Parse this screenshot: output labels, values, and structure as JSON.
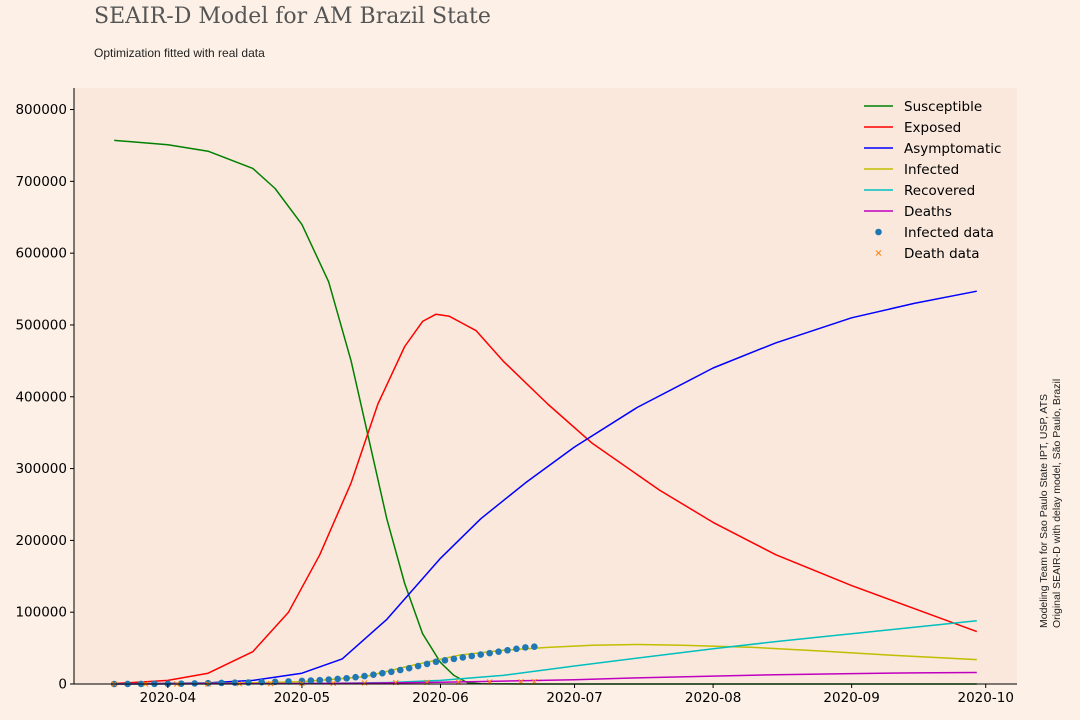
{
  "header": {
    "title": "SEAIR-D Model for AM Brazil State",
    "subtitle": "Optimization fitted with real data"
  },
  "credits": {
    "line1": "Modeling Team for Sao Paulo State IPT, USP, ATS",
    "line2": "Original SEAIR-D with delay model, São Paulo, Brazil"
  },
  "colors": {
    "figure_bg": "#fdf1e7",
    "axes_bg": "#fae8dc"
  },
  "chart_data": {
    "type": "line",
    "title": "SEAIR-D Model for AM Brazil State",
    "subtitle": "Optimization fitted with real data",
    "xlabel": "",
    "ylabel": "",
    "x_start": "2020-03-20",
    "x_end": "2020-09-29",
    "xlim": [
      "2020-03-11",
      "2020-10-08"
    ],
    "ylim": [
      0,
      830000
    ],
    "x_ticks": [
      "2020-04",
      "2020-05",
      "2020-06",
      "2020-07",
      "2020-08",
      "2020-09",
      "2020-10"
    ],
    "y_ticks": [
      0,
      100000,
      200000,
      300000,
      400000,
      500000,
      600000,
      700000,
      800000
    ],
    "grid": false,
    "legend_position": "top-right",
    "series": [
      {
        "name": "Susceptible",
        "color": "#008000",
        "style": "line",
        "points": [
          [
            "2020-03-20",
            757000
          ],
          [
            "2020-04-01",
            751000
          ],
          [
            "2020-04-10",
            742000
          ],
          [
            "2020-04-20",
            718000
          ],
          [
            "2020-04-25",
            690000
          ],
          [
            "2020-05-01",
            640000
          ],
          [
            "2020-05-07",
            560000
          ],
          [
            "2020-05-12",
            450000
          ],
          [
            "2020-05-16",
            340000
          ],
          [
            "2020-05-20",
            230000
          ],
          [
            "2020-05-24",
            140000
          ],
          [
            "2020-05-28",
            70000
          ],
          [
            "2020-06-01",
            30000
          ],
          [
            "2020-06-04",
            12000
          ],
          [
            "2020-06-07",
            2000
          ],
          [
            "2020-06-10",
            300
          ],
          [
            "2020-06-20",
            0
          ],
          [
            "2020-09-29",
            0
          ]
        ]
      },
      {
        "name": "Exposed",
        "color": "#ff0000",
        "style": "line",
        "points": [
          [
            "2020-03-20",
            500
          ],
          [
            "2020-04-01",
            5000
          ],
          [
            "2020-04-10",
            15000
          ],
          [
            "2020-04-20",
            45000
          ],
          [
            "2020-04-28",
            100000
          ],
          [
            "2020-05-05",
            180000
          ],
          [
            "2020-05-12",
            280000
          ],
          [
            "2020-05-18",
            390000
          ],
          [
            "2020-05-24",
            470000
          ],
          [
            "2020-05-28",
            505000
          ],
          [
            "2020-05-31",
            515000
          ],
          [
            "2020-06-03",
            512000
          ],
          [
            "2020-06-06",
            502000
          ],
          [
            "2020-06-09",
            492000
          ],
          [
            "2020-06-15",
            450000
          ],
          [
            "2020-06-25",
            390000
          ],
          [
            "2020-07-05",
            335000
          ],
          [
            "2020-07-20",
            270000
          ],
          [
            "2020-08-01",
            225000
          ],
          [
            "2020-08-15",
            180000
          ],
          [
            "2020-09-01",
            137000
          ],
          [
            "2020-09-15",
            105000
          ],
          [
            "2020-09-29",
            73000
          ]
        ]
      },
      {
        "name": "Asymptomatic",
        "color": "#0000ff",
        "style": "line",
        "points": [
          [
            "2020-03-20",
            0
          ],
          [
            "2020-04-10",
            1500
          ],
          [
            "2020-04-20",
            5000
          ],
          [
            "2020-05-01",
            15000
          ],
          [
            "2020-05-10",
            35000
          ],
          [
            "2020-05-20",
            90000
          ],
          [
            "2020-06-01",
            175000
          ],
          [
            "2020-06-10",
            230000
          ],
          [
            "2020-06-20",
            280000
          ],
          [
            "2020-07-01",
            330000
          ],
          [
            "2020-07-15",
            385000
          ],
          [
            "2020-08-01",
            440000
          ],
          [
            "2020-08-15",
            475000
          ],
          [
            "2020-09-01",
            510000
          ],
          [
            "2020-09-15",
            530000
          ],
          [
            "2020-09-29",
            547000
          ]
        ]
      },
      {
        "name": "Infected",
        "color": "#bfbf00",
        "style": "line",
        "points": [
          [
            "2020-03-20",
            0
          ],
          [
            "2020-04-15",
            1000
          ],
          [
            "2020-05-01",
            3000
          ],
          [
            "2020-05-15",
            10000
          ],
          [
            "2020-05-25",
            25000
          ],
          [
            "2020-06-05",
            40000
          ],
          [
            "2020-06-15",
            47000
          ],
          [
            "2020-06-25",
            51000
          ],
          [
            "2020-07-05",
            54000
          ],
          [
            "2020-07-15",
            55000
          ],
          [
            "2020-07-25",
            54000
          ],
          [
            "2020-08-10",
            51000
          ],
          [
            "2020-08-25",
            46000
          ],
          [
            "2020-09-10",
            40000
          ],
          [
            "2020-09-29",
            34000
          ]
        ]
      },
      {
        "name": "Recovered",
        "color": "#00bfbf",
        "style": "line",
        "points": [
          [
            "2020-03-20",
            0
          ],
          [
            "2020-05-01",
            500
          ],
          [
            "2020-05-20",
            2000
          ],
          [
            "2020-06-01",
            5000
          ],
          [
            "2020-06-15",
            12000
          ],
          [
            "2020-07-01",
            25000
          ],
          [
            "2020-07-15",
            36000
          ],
          [
            "2020-08-01",
            49000
          ],
          [
            "2020-08-15",
            59000
          ],
          [
            "2020-09-01",
            70000
          ],
          [
            "2020-09-15",
            79000
          ],
          [
            "2020-09-29",
            88000
          ]
        ]
      },
      {
        "name": "Deaths",
        "color": "#bf00bf",
        "style": "line",
        "points": [
          [
            "2020-03-20",
            0
          ],
          [
            "2020-05-15",
            1000
          ],
          [
            "2020-06-01",
            2500
          ],
          [
            "2020-06-15",
            4000
          ],
          [
            "2020-07-01",
            6000
          ],
          [
            "2020-07-15",
            8500
          ],
          [
            "2020-08-01",
            11000
          ],
          [
            "2020-08-15",
            13000
          ],
          [
            "2020-09-01",
            14500
          ],
          [
            "2020-09-15",
            15500
          ],
          [
            "2020-09-29",
            16000
          ]
        ]
      },
      {
        "name": "Infected data",
        "color": "#1f77b4",
        "style": "dots",
        "points": [
          [
            "2020-03-20",
            0
          ],
          [
            "2020-03-23",
            30
          ],
          [
            "2020-03-26",
            100
          ],
          [
            "2020-03-29",
            200
          ],
          [
            "2020-04-01",
            300
          ],
          [
            "2020-04-04",
            500
          ],
          [
            "2020-04-07",
            800
          ],
          [
            "2020-04-10",
            1200
          ],
          [
            "2020-04-13",
            1500
          ],
          [
            "2020-04-16",
            1800
          ],
          [
            "2020-04-19",
            2100
          ],
          [
            "2020-04-22",
            2500
          ],
          [
            "2020-04-25",
            3000
          ],
          [
            "2020-04-28",
            3600
          ],
          [
            "2020-05-01",
            4200
          ],
          [
            "2020-05-03",
            4800
          ],
          [
            "2020-05-05",
            5400
          ],
          [
            "2020-05-07",
            6200
          ],
          [
            "2020-05-09",
            7000
          ],
          [
            "2020-05-11",
            8000
          ],
          [
            "2020-05-13",
            9500
          ],
          [
            "2020-05-15",
            11000
          ],
          [
            "2020-05-17",
            13000
          ],
          [
            "2020-05-19",
            15000
          ],
          [
            "2020-05-21",
            17000
          ],
          [
            "2020-05-23",
            19500
          ],
          [
            "2020-05-25",
            22000
          ],
          [
            "2020-05-27",
            25000
          ],
          [
            "2020-05-29",
            28000
          ],
          [
            "2020-05-31",
            31000
          ],
          [
            "2020-06-02",
            33000
          ],
          [
            "2020-06-04",
            35000
          ],
          [
            "2020-06-06",
            37000
          ],
          [
            "2020-06-08",
            39000
          ],
          [
            "2020-06-10",
            41000
          ],
          [
            "2020-06-12",
            43000
          ],
          [
            "2020-06-14",
            45000
          ],
          [
            "2020-06-16",
            47000
          ],
          [
            "2020-06-18",
            49000
          ],
          [
            "2020-06-20",
            51000
          ],
          [
            "2020-06-22",
            52000
          ]
        ]
      },
      {
        "name": "Death data",
        "color": "#ff7f0e",
        "style": "cross",
        "points": [
          [
            "2020-03-20",
            0
          ],
          [
            "2020-03-27",
            10
          ],
          [
            "2020-04-03",
            30
          ],
          [
            "2020-04-10",
            100
          ],
          [
            "2020-04-17",
            250
          ],
          [
            "2020-04-24",
            500
          ],
          [
            "2020-05-01",
            800
          ],
          [
            "2020-05-08",
            1100
          ],
          [
            "2020-05-15",
            1500
          ],
          [
            "2020-05-22",
            1900
          ],
          [
            "2020-05-29",
            2300
          ],
          [
            "2020-06-05",
            2600
          ],
          [
            "2020-06-12",
            2900
          ],
          [
            "2020-06-19",
            3100
          ],
          [
            "2020-06-22",
            3200
          ]
        ]
      }
    ]
  }
}
